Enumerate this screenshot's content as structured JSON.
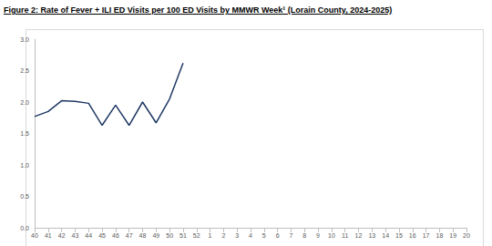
{
  "chart_data": {
    "type": "line",
    "title": "Figure 2: Rate of Fever + ILI ED Visits per 100 ED Visits by MMWR Week¹ (Lorain County, 2024-2025)",
    "categories": [
      "40",
      "41",
      "42",
      "43",
      "44",
      "45",
      "46",
      "47",
      "48",
      "49",
      "50",
      "51",
      "52",
      "1",
      "2",
      "3",
      "4",
      "5",
      "6",
      "7",
      "8",
      "9",
      "10",
      "11",
      "12",
      "13",
      "14",
      "15",
      "16",
      "17",
      "18",
      "19",
      "20"
    ],
    "values": [
      1.77,
      1.85,
      2.02,
      2.01,
      1.98,
      1.63,
      1.95,
      1.63,
      2.0,
      1.67,
      2.05,
      2.62,
      null,
      null,
      null,
      null,
      null,
      null,
      null,
      null,
      null,
      null,
      null,
      null,
      null,
      null,
      null,
      null,
      null,
      null,
      null,
      null,
      null
    ],
    "color": "#1f3864",
    "ylim": [
      0,
      3
    ],
    "yticks": [
      {
        "value": 0,
        "label": "0.0"
      },
      0.5,
      {
        "value": 1,
        "label": "1.0"
      },
      1.5,
      {
        "value": 2,
        "label": "2.0"
      },
      2.5,
      {
        "value": 3,
        "label": "3.0"
      }
    ],
    "grid": false
  }
}
